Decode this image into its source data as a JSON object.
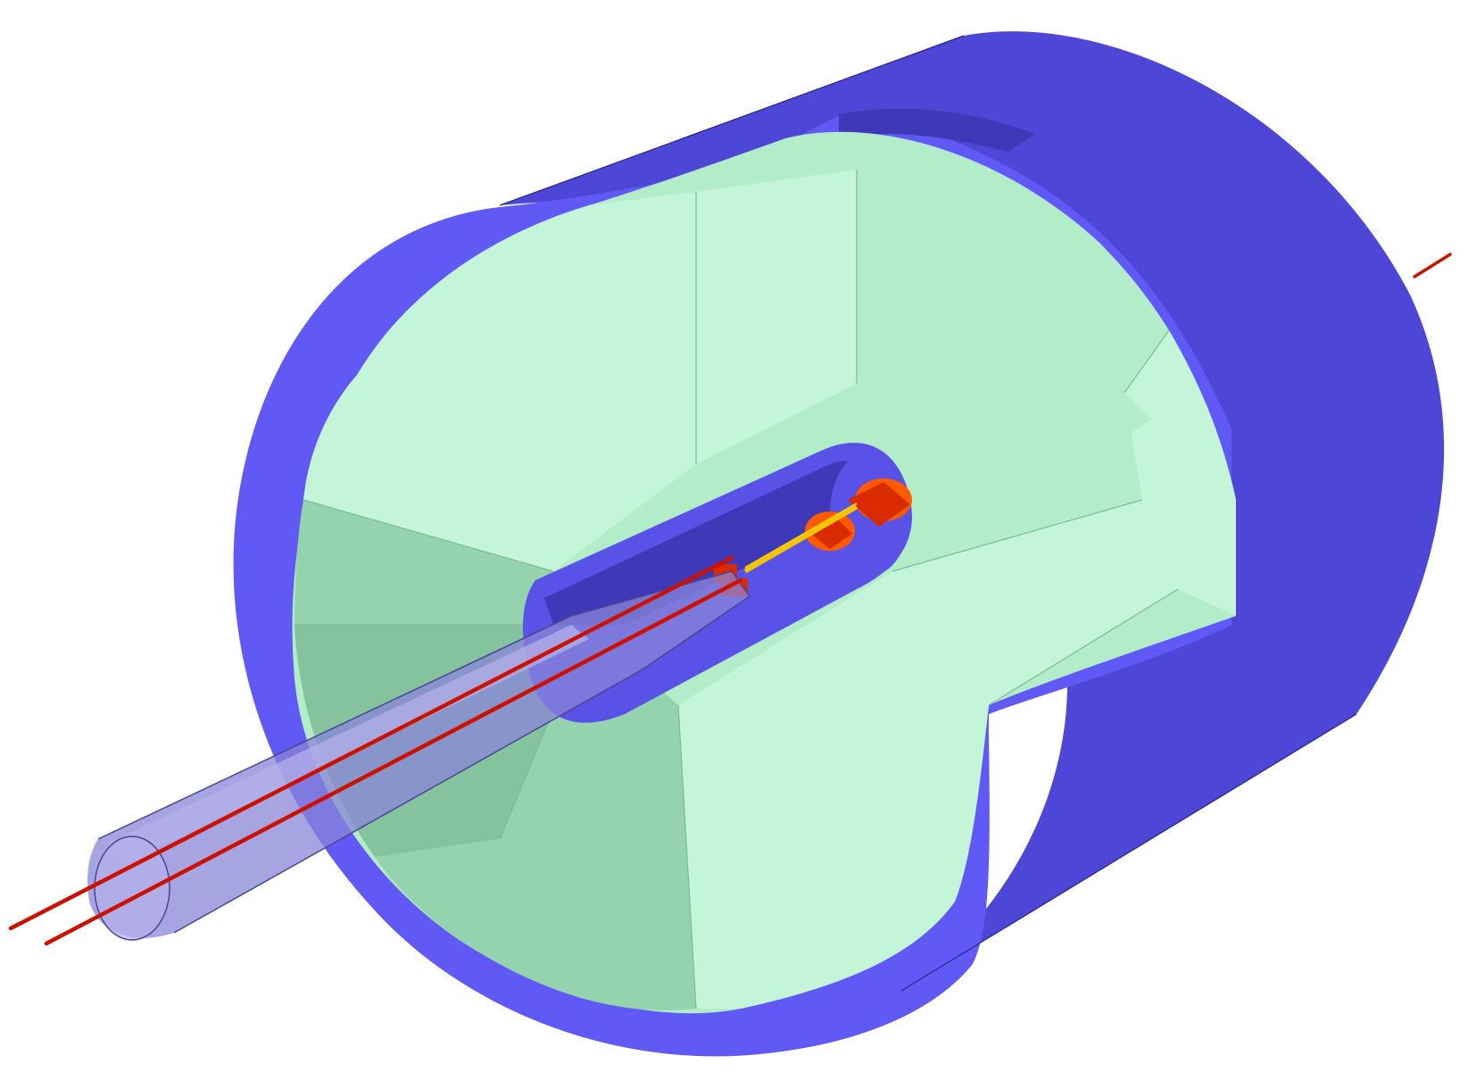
{
  "scene": {
    "description_free": true,
    "background": "#ffffff"
  },
  "colors": {
    "outer_shell_front": "#6059f6",
    "outer_shell_side": "#4d46d6",
    "outer_shell_dark": "#3f38b8",
    "outer_shell_edge": "#2a2488",
    "inner_fill_light": "#c4f5d8",
    "inner_fill_mid": "#b3ecc8",
    "inner_fill_dark": "#94d3ad",
    "inner_fill_deep": "#85c29e",
    "inner_edge": "#7fb89a",
    "core_tube": "#5a52e6",
    "core_tube_inner": "#3f38b8",
    "beam_pipe": "#8a86d8",
    "beam_pipe_light": "#b4b0ea",
    "beam_pipe_edge": "#4a4590",
    "beam_line": "#cc1100",
    "target_orange": "#ff5a00",
    "target_red": "#d92a00",
    "target_yellow": "#ffd000",
    "target_rod": "#f3c400"
  }
}
